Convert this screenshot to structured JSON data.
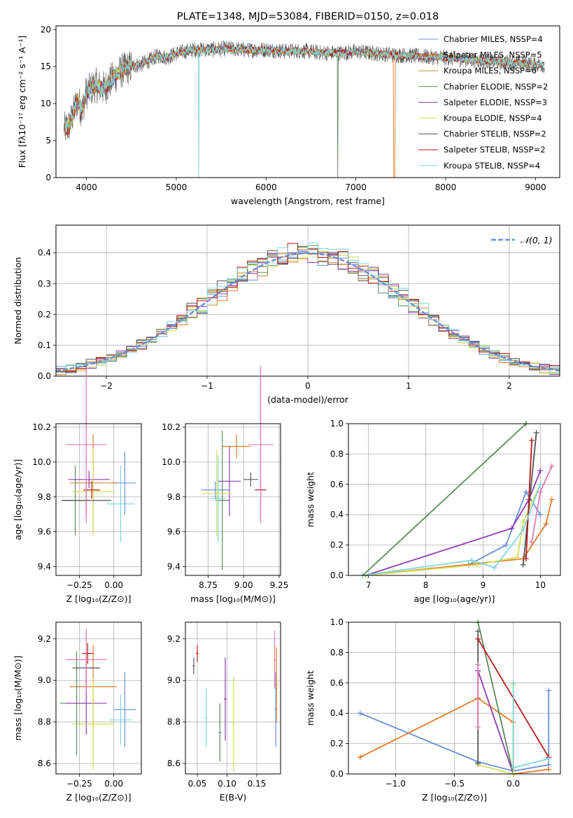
{
  "colors": [
    "#6a8fd8",
    "#e07b2a",
    "#b8912a",
    "#5b8c5a",
    "#8e3cb5",
    "#d4e05a",
    "#555555",
    "#b51a1a",
    "#7fd6d9"
  ],
  "extra_colors": {
    "pink": "#e57ab0"
  },
  "chart_data": [
    {
      "id": "spectrum",
      "type": "line",
      "title": "PLATE=1348, MJD=53084, FIBERID=0150, z=0.018",
      "xlabel": "wavelength [Angstrom, rest frame]",
      "ylabel": "Flux [fλ10⁻¹⁷ erg cm⁻² s⁻¹ A⁻¹]",
      "xlim": [
        3660,
        9270
      ],
      "ylim": [
        0,
        20.5
      ],
      "xticks": [
        4000,
        5000,
        6000,
        7000,
        8000,
        9000
      ],
      "yticks": [
        0,
        5,
        10,
        15,
        20
      ],
      "grid": false,
      "legend_position": "upper right",
      "series": [
        {
          "name": "Chabrier MILES, NSSP=4"
        },
        {
          "name": "Salpeter MILES, NSSP=5"
        },
        {
          "name": "Kroupa MILES, NSSP=6"
        },
        {
          "name": "Chabrier ELODIE, NSSP=2"
        },
        {
          "name": "Salpeter ELODIE, NSSP=3"
        },
        {
          "name": "Kroupa ELODIE, NSSP=4"
        },
        {
          "name": "Chabrier STELIB, NSSP=2"
        },
        {
          "name": "Salpeter STELIB, NSSP=2"
        },
        {
          "name": "Kroupa STELIB, NSSP=4"
        }
      ],
      "envelope": {
        "x": [
          3750,
          3800,
          3850,
          3900,
          3950,
          4000,
          4100,
          4200,
          4300,
          4400,
          4500,
          4600,
          4700,
          4800,
          4900,
          5000,
          5200,
          5400,
          5600,
          5800,
          6000,
          6200,
          6400,
          6600,
          6800,
          7000,
          7200,
          7400,
          7600,
          7800,
          8000,
          8200,
          8400,
          8600,
          8800,
          9000,
          9100
        ],
        "y": [
          6.5,
          6.8,
          8.5,
          10.5,
          9.0,
          11.5,
          12.5,
          12.0,
          13.5,
          14.5,
          15.0,
          15.3,
          15.8,
          16.5,
          16.2,
          16.8,
          17.3,
          17.3,
          17.4,
          17.2,
          17.3,
          17.1,
          17.1,
          16.9,
          16.8,
          17.0,
          16.8,
          16.6,
          16.5,
          16.3,
          16.2,
          16.0,
          15.8,
          15.6,
          15.5,
          15.3,
          15.2
        ]
      }
    },
    {
      "id": "residuals",
      "type": "histogram",
      "xlabel": "(data-model)/error",
      "ylabel": "Normed distribution",
      "xlim": [
        -2.5,
        2.5
      ],
      "ylim": [
        0,
        0.49
      ],
      "xticks": [
        -2,
        -1,
        0,
        1,
        2
      ],
      "yticks": [
        0.0,
        0.1,
        0.2,
        0.3,
        0.4
      ],
      "grid": true,
      "legend": "𝒩(0, 1)",
      "legend_position": "upper right",
      "bin_width": 0.1
    },
    {
      "id": "age-vs-Z",
      "type": "scatter",
      "xlabel": "Z [log₁₀(Z/Z⊙)]",
      "ylabel": "age  [log₁₀(age/yr)]",
      "xlim": [
        -0.42,
        0.2
      ],
      "ylim": [
        9.35,
        10.22
      ],
      "xticks": [
        -0.25,
        0.0
      ],
      "yticks": [
        9.4,
        9.6,
        9.8,
        10.0,
        10.2
      ],
      "grid": true,
      "points": [
        {
          "c": 0,
          "x": 0.08,
          "y": 9.88,
          "xerr": 0.08,
          "yerr": 0.18
        },
        {
          "c": 1,
          "x": -0.15,
          "y": 9.88,
          "xerr": 0.17,
          "yerr": 0.28
        },
        {
          "c": 3,
          "x": -0.28,
          "y": 9.78,
          "xerr": 0.1,
          "yerr": 0.2
        },
        {
          "c": 4,
          "x": -0.18,
          "y": 9.9,
          "xerr": 0.15,
          "yerr": 0.05
        },
        {
          "c": 5,
          "x": -0.15,
          "y": 9.83,
          "xerr": 0.15,
          "yerr": 0.25
        },
        {
          "c": 6,
          "x": -0.2,
          "y": 9.78,
          "xerr": 0.18,
          "yerr": 0.08
        },
        {
          "c": 7,
          "x": -0.16,
          "y": 9.84,
          "xerr": 0.06,
          "yerr": 0.05
        },
        {
          "c": 8,
          "x": 0.05,
          "y": 9.76,
          "xerr": 0.1,
          "yerr": 0.22
        },
        {
          "c": "pink",
          "x": -0.2,
          "y": 10.1,
          "xerr": 0.15,
          "yerr": 0.45
        }
      ]
    },
    {
      "id": "age-vs-mass",
      "type": "scatter",
      "xlabel": "mass [log₁₀(M/M⊙)]",
      "ylabel": "",
      "xlim": [
        8.59,
        9.26
      ],
      "ylim": [
        9.35,
        10.22
      ],
      "xticks": [
        8.75,
        9.0,
        9.25
      ],
      "yticks": [
        9.4,
        9.6,
        9.8,
        10.0,
        10.2
      ],
      "grid": true,
      "points": [
        {
          "c": 0,
          "x": 8.8,
          "y": 9.84,
          "xerr": 0.1,
          "yerr": 0.05
        },
        {
          "c": 1,
          "x": 8.95,
          "y": 10.09,
          "xerr": 0.1,
          "yerr": 0.07
        },
        {
          "c": 3,
          "x": 8.85,
          "y": 9.78,
          "xerr": 0.05,
          "yerr": 0.4
        },
        {
          "c": 4,
          "x": 8.9,
          "y": 9.89,
          "xerr": 0.08,
          "yerr": 0.2
        },
        {
          "c": 5,
          "x": 8.81,
          "y": 9.82,
          "xerr": 0.1,
          "yerr": 0.25
        },
        {
          "c": 6,
          "x": 9.05,
          "y": 9.9,
          "xerr": 0.05,
          "yerr": 0.04
        },
        {
          "c": 7,
          "x": 9.12,
          "y": 9.84,
          "xerr": 0.04,
          "yerr": 0.04
        },
        {
          "c": 8,
          "x": 8.82,
          "y": 9.79,
          "xerr": 0.05,
          "yerr": 0.25
        },
        {
          "c": "pink",
          "x": 9.12,
          "y": 10.1,
          "xerr": 0.09,
          "yerr": 0.45
        }
      ]
    },
    {
      "id": "weight-vs-age",
      "type": "line",
      "xlabel": "age  [log₁₀(age/yr)]",
      "ylabel": "mass weight",
      "xlim": [
        6.65,
        10.35
      ],
      "ylim": [
        0,
        1.0
      ],
      "xticks": [
        7,
        8,
        9,
        10
      ],
      "yticks": [
        0.0,
        0.2,
        0.4,
        0.6,
        0.8,
        1.0
      ],
      "grid": true,
      "series": [
        {
          "c": 0,
          "x": [
            6.95,
            8.75,
            9.4,
            9.75,
            10.0
          ],
          "y": [
            0.0,
            0.07,
            0.2,
            0.55,
            0.4
          ]
        },
        {
          "c": 1,
          "x": [
            6.95,
            9.7,
            10.1,
            10.2
          ],
          "y": [
            0.0,
            0.11,
            0.34,
            0.5
          ]
        },
        {
          "c": 3,
          "x": [
            6.9,
            9.75
          ],
          "y": [
            0.0,
            1.0
          ]
        },
        {
          "c": 4,
          "x": [
            6.95,
            9.5,
            9.8,
            10.0
          ],
          "y": [
            0.0,
            0.31,
            0.5,
            0.69
          ]
        },
        {
          "c": 5,
          "x": [
            6.95,
            8.9,
            9.6,
            9.7,
            10.0
          ],
          "y": [
            0.0,
            0.07,
            0.12,
            0.35,
            0.6
          ]
        },
        {
          "c": 6,
          "x": [
            9.7,
            9.93
          ],
          "y": [
            0.07,
            0.94
          ]
        },
        {
          "c": 7,
          "x": [
            9.75,
            9.85
          ],
          "y": [
            0.11,
            0.89
          ]
        },
        {
          "c": 8,
          "x": [
            6.9,
            8.8,
            9.2,
            9.7,
            10.0
          ],
          "y": [
            0.0,
            0.1,
            0.05,
            0.3,
            0.6
          ]
        },
        {
          "c": "pink",
          "x": [
            9.85,
            10.0,
            10.2
          ],
          "y": [
            0.22,
            0.55,
            0.72
          ]
        }
      ]
    },
    {
      "id": "mass-vs-Z",
      "type": "scatter",
      "xlabel": "Z [log₁₀(Z/Z⊙)]",
      "ylabel": "mass [log₁₀(M/M⊙)]",
      "xlim": [
        -0.42,
        0.2
      ],
      "ylim": [
        8.55,
        9.28
      ],
      "xticks": [
        -0.25,
        0.0
      ],
      "yticks": [
        8.6,
        8.8,
        9.0,
        9.2
      ],
      "grid": true,
      "points": [
        {
          "c": 0,
          "x": 0.08,
          "y": 8.86,
          "xerr": 0.08,
          "yerr": 0.18
        },
        {
          "c": 1,
          "x": -0.15,
          "y": 8.97,
          "xerr": 0.17,
          "yerr": 0.2
        },
        {
          "c": 3,
          "x": -0.27,
          "y": 8.89,
          "xerr": 0.12,
          "yerr": 0.25
        },
        {
          "c": 4,
          "x": -0.2,
          "y": 8.89,
          "xerr": 0.15,
          "yerr": 0.15
        },
        {
          "c": 5,
          "x": -0.15,
          "y": 8.79,
          "xerr": 0.15,
          "yerr": 0.22
        },
        {
          "c": 6,
          "x": -0.2,
          "y": 9.06,
          "xerr": 0.1,
          "yerr": 0.07
        },
        {
          "c": 7,
          "x": -0.19,
          "y": 9.13,
          "xerr": 0.04,
          "yerr": 0.05
        },
        {
          "c": 8,
          "x": 0.05,
          "y": 8.81,
          "xerr": 0.08,
          "yerr": 0.12
        },
        {
          "c": "pink",
          "x": -0.2,
          "y": 9.1,
          "xerr": 0.15,
          "yerr": 0.15
        }
      ]
    },
    {
      "id": "mass-vs-ebv",
      "type": "errorbar",
      "xlabel": "E(B-V)",
      "ylabel": "",
      "xlim": [
        0.03,
        0.19
      ],
      "ylim": [
        8.55,
        9.28
      ],
      "xticks": [
        0.05,
        0.1,
        0.15
      ],
      "yticks": [
        8.6,
        8.8,
        9.0,
        9.2
      ],
      "grid": true,
      "points": [
        {
          "c": 0,
          "x": 0.182,
          "y": 8.86,
          "yerr": 0.18
        },
        {
          "c": 1,
          "x": 0.183,
          "y": 8.98,
          "yerr": 0.18
        },
        {
          "c": 3,
          "x": 0.088,
          "y": 8.75,
          "yerr": 0.14
        },
        {
          "c": 4,
          "x": 0.097,
          "y": 8.91,
          "yerr": 0.2
        },
        {
          "c": 5,
          "x": 0.111,
          "y": 8.79,
          "yerr": 0.23
        },
        {
          "c": 6,
          "x": 0.044,
          "y": 9.07,
          "yerr": 0.04
        },
        {
          "c": 7,
          "x": 0.05,
          "y": 9.13,
          "yerr": 0.04
        },
        {
          "c": 8,
          "x": 0.065,
          "y": 8.82,
          "yerr": 0.14
        },
        {
          "c": "pink",
          "x": 0.18,
          "y": 9.1,
          "yerr": 0.14
        }
      ]
    },
    {
      "id": "weight-vs-Z",
      "type": "line",
      "xlabel": "Z [log₁₀(Z/Z⊙)]",
      "ylabel": "mass weight",
      "xlim": [
        -1.4,
        0.4
      ],
      "ylim": [
        0,
        1.0
      ],
      "xticks": [
        -1.0,
        -0.5,
        0.0
      ],
      "yticks": [
        0.0,
        0.2,
        0.4,
        0.6,
        0.8,
        1.0
      ],
      "grid": true,
      "series": [
        {
          "c": 0,
          "x": [
            -1.3,
            -0.3,
            0.0,
            0.3,
            0.3
          ],
          "y": [
            0.4,
            0.08,
            0.02,
            0.06,
            0.55
          ]
        },
        {
          "c": 1,
          "x": [
            -1.3,
            -0.3,
            0.0,
            0.0,
            0.3
          ],
          "y": [
            0.11,
            0.5,
            0.34,
            0.0,
            0.03
          ]
        },
        {
          "c": 3,
          "x": [
            -0.3,
            0.0
          ],
          "y": [
            1.0,
            0.0
          ]
        },
        {
          "c": 4,
          "x": [
            -0.3,
            0.0
          ],
          "y": [
            0.68,
            0.0
          ]
        },
        {
          "c": 5,
          "x": [
            -0.3,
            0.0,
            0.0
          ],
          "y": [
            0.06,
            0.0,
            0.59
          ]
        },
        {
          "c": 6,
          "x": [
            -0.3,
            -0.3
          ],
          "y": [
            0.07,
            0.94
          ]
        },
        {
          "c": 7,
          "x": [
            -0.3,
            0.3
          ],
          "y": [
            0.89,
            0.11
          ]
        },
        {
          "c": 8,
          "x": [
            0.0,
            0.0,
            0.3
          ],
          "y": [
            0.6,
            0.04,
            0.1
          ]
        },
        {
          "c": "pink",
          "x": [
            -0.3,
            -0.3
          ],
          "y": [
            0.31,
            0.72
          ]
        }
      ]
    }
  ]
}
